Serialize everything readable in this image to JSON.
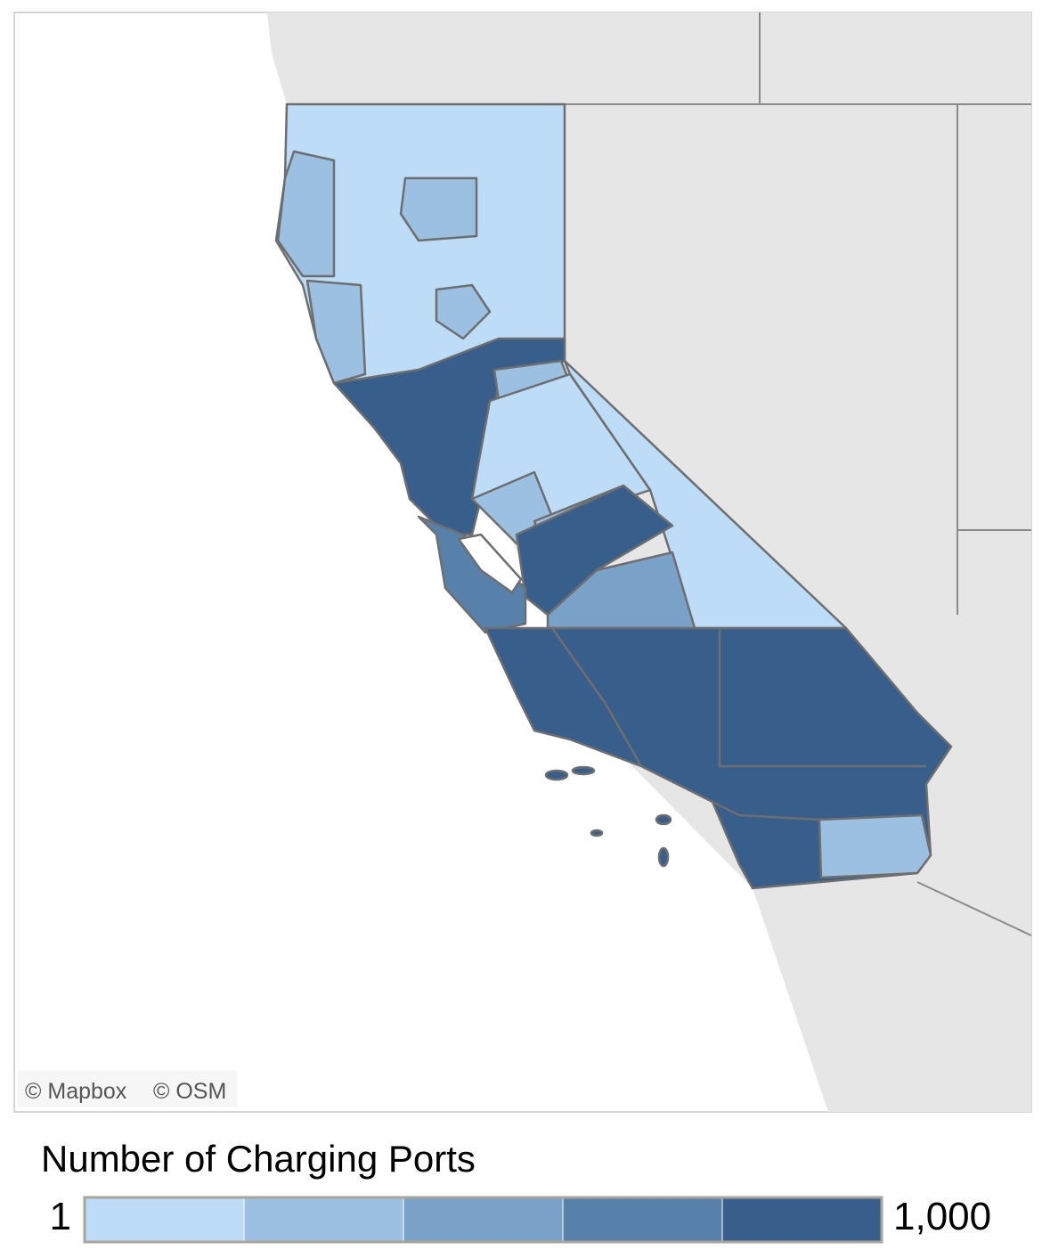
{
  "attribution": [
    "© Mapbox",
    "© OSM"
  ],
  "legend": {
    "title": "Number of Charging Ports",
    "min_label": "1",
    "max_label": "1,000",
    "colors": [
      "#bddcf7",
      "#9cc0e2",
      "#7aa2c8",
      "#5780aa",
      "#385e8b"
    ]
  }
}
